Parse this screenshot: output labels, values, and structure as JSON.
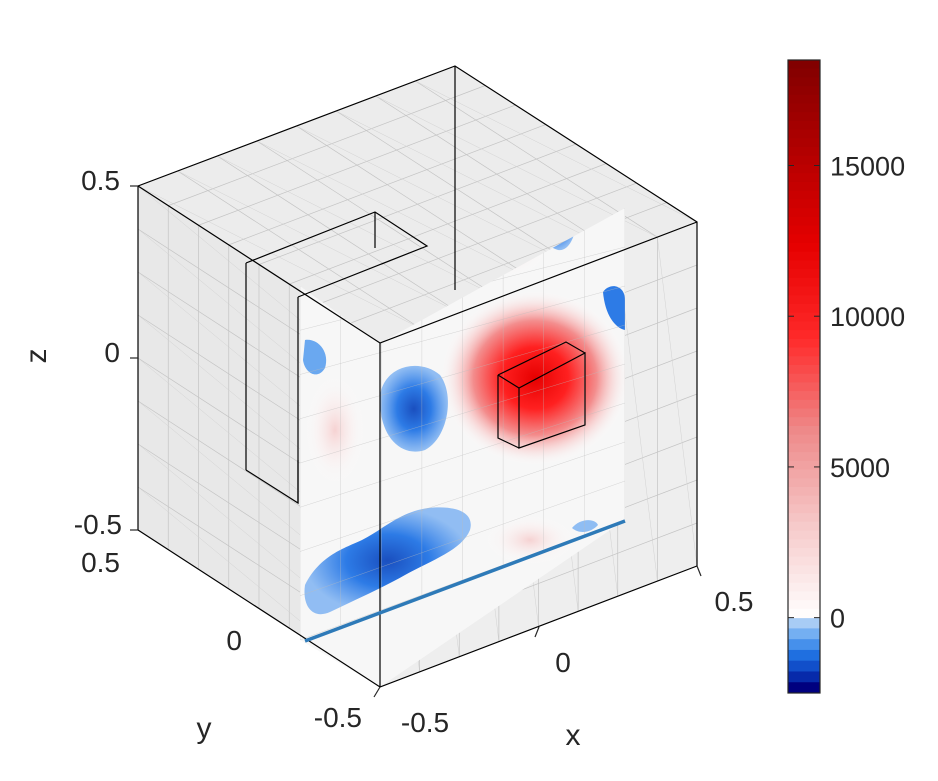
{
  "chart_data": {
    "type": "heatmap",
    "title": "",
    "projection": "3d-box",
    "xlabel": "x",
    "ylabel": "y",
    "zlabel": "z",
    "xlim": [
      -0.5,
      0.5
    ],
    "ylim": [
      -0.5,
      0.5
    ],
    "zlim": [
      -0.5,
      0.5
    ],
    "x_ticks": [
      "-0.5",
      "0",
      "0.5"
    ],
    "y_ticks": [
      "-0.5",
      "0",
      "0.5"
    ],
    "z_ticks": [
      "-0.5",
      "0",
      "0.5"
    ],
    "grid": true,
    "colorbar": {
      "location": "right",
      "range": [
        -2500,
        18500
      ],
      "ticks": [
        0,
        5000,
        10000,
        15000
      ],
      "tick_labels": [
        "0",
        "5000",
        "10000",
        "15000"
      ],
      "colormap": [
        "#00007f",
        "#0a3fbf",
        "#1f6fe0",
        "#5aa0f0",
        "#a8ccf5",
        "#ffffff",
        "#f6c9c9",
        "#ee8a8a",
        "#ff2a2a",
        "#e60000",
        "#b30000",
        "#800000"
      ]
    },
    "slice": {
      "plane": "x-z at y = -0.5",
      "peak_value": 16000,
      "peak_location": {
        "x": 0.05,
        "z": -0.05
      },
      "min_value": -2500,
      "min_location": {
        "x": -0.35,
        "z": -0.1
      }
    },
    "colors": {
      "positive": "#ff0000",
      "negative": "#1f6fe0",
      "line": "#2e7ab8",
      "pane": "#e3e3e3",
      "edge": "#000000"
    }
  }
}
